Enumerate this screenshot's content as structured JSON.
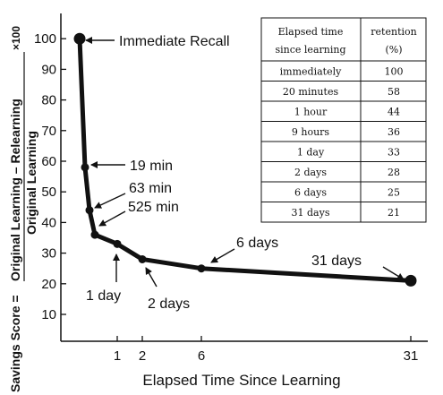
{
  "chart_data": {
    "type": "line",
    "xlabel": "Elapsed Time Since Learning",
    "ylabel": {
      "prefix": "Savings Score =",
      "numerator": "Original Learning – Relearning",
      "denominator": "Original Learning",
      "multiplier": "×100"
    },
    "ylim": [
      0,
      105
    ],
    "y_ticks": [
      10,
      20,
      30,
      40,
      50,
      60,
      70,
      80,
      90,
      100
    ],
    "x_ticks": [
      "1",
      "2",
      "6",
      "31"
    ],
    "points": [
      {
        "t": "immediately",
        "y": 100
      },
      {
        "t": "19 min",
        "y": 58
      },
      {
        "t": "63 min",
        "y": 44
      },
      {
        "t": "525 min",
        "y": 36
      },
      {
        "t": "1 day",
        "y": 33
      },
      {
        "t": "2 days",
        "y": 28
      },
      {
        "t": "6 days",
        "y": 25
      },
      {
        "t": "31 days",
        "y": 21
      }
    ],
    "annotations": {
      "immediate": "Immediate Recall",
      "m19": "19 min",
      "m63": "63 min",
      "m525": "525 min",
      "d1": "1 day",
      "d2": "2 days",
      "d6": "6 days",
      "d31": "31 days"
    }
  },
  "table": {
    "headers": [
      [
        "Elapsed time",
        "since learning"
      ],
      [
        "retention",
        "(%)"
      ]
    ],
    "rows": [
      [
        "immediately",
        "100"
      ],
      [
        "20 minutes",
        "58"
      ],
      [
        "1 hour",
        "44"
      ],
      [
        "9 hours",
        "36"
      ],
      [
        "1 day",
        "33"
      ],
      [
        "2 days",
        "28"
      ],
      [
        "6 days",
        "25"
      ],
      [
        "31 days",
        "21"
      ]
    ]
  }
}
